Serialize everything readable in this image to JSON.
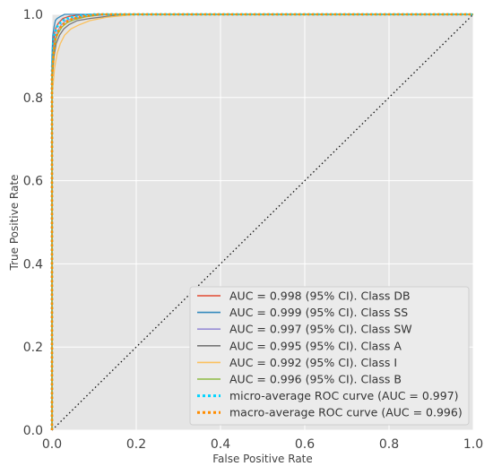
{
  "chart_data": {
    "type": "line",
    "title": "",
    "xlabel": "False Positive Rate",
    "ylabel": "True Positive Rate",
    "xlim": [
      0.0,
      1.0
    ],
    "ylim": [
      0.0,
      1.0
    ],
    "xticks": [
      "0.0",
      "0.2",
      "0.4",
      "0.6",
      "0.8",
      "1.0"
    ],
    "yticks": [
      "0.0",
      "0.2",
      "0.4",
      "0.6",
      "0.8",
      "1.0"
    ],
    "grid": true,
    "background": "#e5e5e5",
    "legend_position": "lower-right",
    "series": [
      {
        "name": "AUC = 0.998 (95% CI). Class DB",
        "color": "#e24a33",
        "style": "solid",
        "x": [
          0,
          0,
          0.003,
          0.006,
          0.01,
          0.016,
          0.026,
          0.04,
          0.06,
          0.1,
          1.0
        ],
        "y": [
          0,
          0.88,
          0.93,
          0.955,
          0.97,
          0.98,
          0.99,
          0.995,
          0.998,
          1.0,
          1.0
        ]
      },
      {
        "name": "AUC = 0.999 (95% CI). Class SS",
        "color": "#348abd",
        "style": "solid",
        "x": [
          0,
          0,
          0.002,
          0.005,
          0.008,
          0.012,
          0.02,
          0.03,
          0.05,
          1.0
        ],
        "y": [
          0,
          0.9,
          0.95,
          0.97,
          0.985,
          0.99,
          0.995,
          1.0,
          1.0,
          1.0
        ]
      },
      {
        "name": "AUC = 0.997 (95% CI). Class SW",
        "color": "#988ed5",
        "style": "solid",
        "x": [
          0,
          0,
          0.004,
          0.008,
          0.014,
          0.022,
          0.034,
          0.05,
          0.08,
          0.14,
          1.0
        ],
        "y": [
          0,
          0.86,
          0.92,
          0.945,
          0.96,
          0.975,
          0.985,
          0.99,
          0.995,
          1.0,
          1.0
        ]
      },
      {
        "name": "AUC = 0.995 (95% CI). Class A",
        "color": "#777777",
        "style": "solid",
        "x": [
          0,
          0,
          0.005,
          0.01,
          0.018,
          0.028,
          0.04,
          0.06,
          0.09,
          0.13,
          0.17,
          1.0
        ],
        "y": [
          0,
          0.84,
          0.9,
          0.93,
          0.95,
          0.965,
          0.975,
          0.985,
          0.99,
          0.995,
          1.0,
          1.0
        ]
      },
      {
        "name": "AUC = 0.992 (95% CI). Class I",
        "color": "#fbc15e",
        "style": "solid",
        "x": [
          0,
          0,
          0.006,
          0.012,
          0.02,
          0.03,
          0.045,
          0.065,
          0.09,
          0.13,
          0.2,
          1.0
        ],
        "y": [
          0,
          0.8,
          0.87,
          0.905,
          0.93,
          0.95,
          0.965,
          0.975,
          0.985,
          0.993,
          1.0,
          1.0
        ]
      },
      {
        "name": "AUC = 0.996 (95% CI). Class B",
        "color": "#8eba42",
        "style": "solid",
        "x": [
          0,
          0,
          0.004,
          0.009,
          0.015,
          0.024,
          0.036,
          0.055,
          0.08,
          0.12,
          1.0
        ],
        "y": [
          0,
          0.85,
          0.91,
          0.94,
          0.955,
          0.97,
          0.98,
          0.988,
          0.994,
          1.0,
          1.0
        ]
      },
      {
        "name": "micro-average ROC curve (AUC = 0.997)",
        "color": "#00d4ff",
        "style": "dotted",
        "x": [
          0,
          0,
          0.003,
          0.007,
          0.012,
          0.02,
          0.03,
          0.045,
          0.07,
          0.1,
          1.0
        ],
        "y": [
          0,
          0.87,
          0.93,
          0.955,
          0.97,
          0.98,
          0.988,
          0.993,
          0.997,
          1.0,
          1.0
        ]
      },
      {
        "name": "macro-average ROC curve (AUC = 0.996)",
        "color": "#ff8c00",
        "style": "dotted",
        "x": [
          0,
          0,
          0.004,
          0.008,
          0.014,
          0.022,
          0.034,
          0.05,
          0.075,
          0.11,
          1.0
        ],
        "y": [
          0,
          0.85,
          0.91,
          0.94,
          0.958,
          0.972,
          0.982,
          0.99,
          0.995,
          1.0,
          1.0
        ]
      }
    ],
    "reference_line": {
      "x": [
        0,
        1
      ],
      "y": [
        0,
        1
      ],
      "color": "#111111",
      "style": "dotted"
    }
  }
}
